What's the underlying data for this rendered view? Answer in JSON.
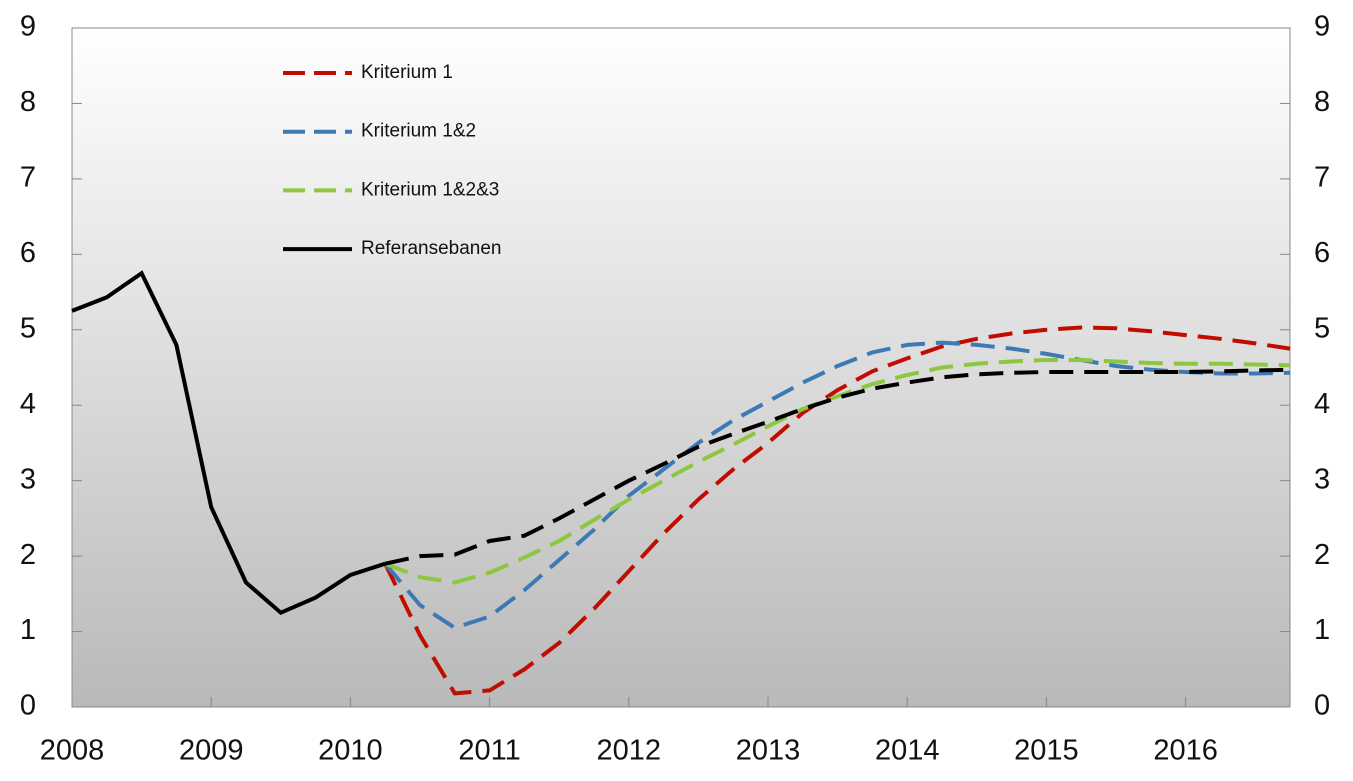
{
  "chart_data": {
    "type": "line",
    "x": [
      2008,
      2008.25,
      2008.5,
      2008.75,
      2009,
      2009.25,
      2009.5,
      2009.75,
      2010,
      2010.25,
      2010.5,
      2010.75,
      2011,
      2011.25,
      2011.5,
      2011.75,
      2012,
      2012.25,
      2012.5,
      2012.75,
      2013,
      2013.25,
      2013.5,
      2013.75,
      2014,
      2014.25,
      2014.5,
      2014.75,
      2015,
      2015.25,
      2015.5,
      2015.75,
      2016,
      2016.25,
      2016.5,
      2016.75
    ],
    "series": [
      {
        "name": "Kriterium 1",
        "color": "#c00d00",
        "values": [
          null,
          null,
          null,
          null,
          null,
          null,
          null,
          null,
          null,
          1.9,
          0.95,
          0.18,
          0.22,
          0.5,
          0.85,
          1.3,
          1.8,
          2.3,
          2.75,
          3.15,
          3.5,
          3.9,
          4.2,
          4.45,
          4.62,
          4.78,
          4.88,
          4.95,
          5.0,
          5.03,
          5.02,
          4.98,
          4.93,
          4.88,
          4.82,
          4.75
        ]
      },
      {
        "name": "Kriterium 1&2",
        "color": "#3d7ab5",
        "values": [
          null,
          null,
          null,
          null,
          null,
          null,
          null,
          null,
          null,
          1.9,
          1.35,
          1.05,
          1.2,
          1.55,
          1.95,
          2.35,
          2.8,
          3.15,
          3.5,
          3.8,
          4.05,
          4.3,
          4.52,
          4.7,
          4.8,
          4.83,
          4.8,
          4.75,
          4.68,
          4.6,
          4.52,
          4.47,
          4.44,
          4.42,
          4.42,
          4.43
        ]
      },
      {
        "name": "Kriterium 1&2&3",
        "color": "#8dc63f",
        "values": [
          null,
          null,
          null,
          null,
          null,
          null,
          null,
          null,
          null,
          1.9,
          1.72,
          1.65,
          1.78,
          1.98,
          2.2,
          2.48,
          2.75,
          3.0,
          3.25,
          3.48,
          3.72,
          3.95,
          4.12,
          4.28,
          4.4,
          4.5,
          4.55,
          4.58,
          4.6,
          4.6,
          4.58,
          4.56,
          4.55,
          4.55,
          4.54,
          4.53
        ]
      },
      {
        "name": "Referansebanen",
        "color": "#000000",
        "values": [
          5.25,
          5.43,
          5.75,
          4.8,
          2.65,
          1.65,
          1.25,
          1.45,
          1.75,
          1.9,
          2.0,
          2.02,
          2.2,
          2.27,
          2.5,
          2.75,
          3.0,
          3.22,
          3.45,
          3.62,
          3.78,
          3.95,
          4.1,
          4.22,
          4.3,
          4.37,
          4.41,
          4.43,
          4.44,
          4.44,
          4.44,
          4.44,
          4.44,
          4.45,
          4.46,
          4.47
        ]
      }
    ],
    "xlim": [
      2008,
      2016.75
    ],
    "xticks": [
      2008,
      2009,
      2010,
      2011,
      2012,
      2013,
      2014,
      2015,
      2016
    ],
    "ylim": [
      0,
      9
    ],
    "yticks": [
      0,
      1,
      2,
      3,
      4,
      5,
      6,
      7,
      8,
      9
    ],
    "y2lim": [
      0,
      9
    ],
    "y2ticks": [
      0,
      1,
      2,
      3,
      4,
      5,
      6,
      7,
      8,
      9
    ],
    "legend": "top-left"
  }
}
